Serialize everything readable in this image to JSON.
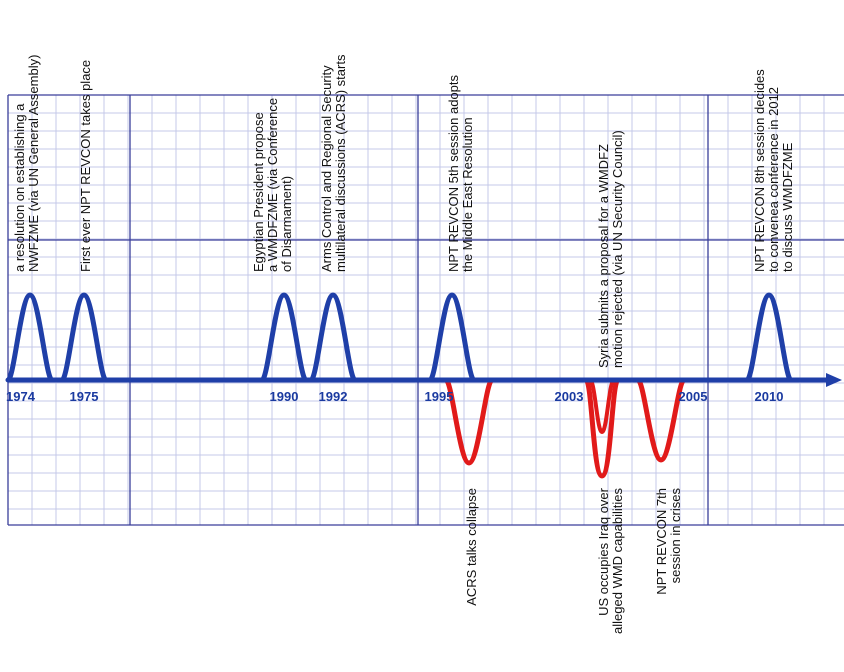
{
  "colors": {
    "grid_fine": "#c4c8e8",
    "grid_major": "#3a3f9a",
    "timeline": "#1f3fa8",
    "positive_event": "#1f3fa8",
    "negative_event": "#e11a1a",
    "text": "#111111",
    "year_text": "#1a3aa0"
  },
  "years": [
    {
      "id": "1974",
      "label": "1974"
    },
    {
      "id": "1975",
      "label": "1975"
    },
    {
      "id": "1990",
      "label": "1990"
    },
    {
      "id": "1992",
      "label": "1992"
    },
    {
      "id": "1995",
      "label": "1995"
    },
    {
      "id": "2003",
      "label": "2003"
    },
    {
      "id": "2005",
      "label": "2005"
    },
    {
      "id": "2010",
      "label": "2010"
    }
  ],
  "events_above": [
    {
      "id": "e1974",
      "year": "1974",
      "lines": [
        "a resolution on establishing a",
        "NWFZME (via UN General Assembly)"
      ]
    },
    {
      "id": "e1975",
      "year": "1975",
      "lines": [
        "First ever NPT REVCON takes place"
      ]
    },
    {
      "id": "e1990",
      "year": "1990",
      "lines": [
        "Egyptian President propose",
        "a WMDFZME (via Conference",
        "of Disarmament)"
      ]
    },
    {
      "id": "e1992",
      "year": "1992",
      "lines": [
        "Arms Control and Regional Security",
        "multilateral discussions (ACRS) starts"
      ]
    },
    {
      "id": "e1995",
      "year": "1995",
      "lines": [
        "NPT REVCON 5th session adopts",
        "the Middle East Resolution"
      ]
    },
    {
      "id": "e2003",
      "year": "2003",
      "lines": [
        "Syria submits a proposal for a WMDFZ",
        "motion rejected (via UN Security Council)"
      ]
    },
    {
      "id": "e2010",
      "year": "2010",
      "lines": [
        "NPT REVCON 8th session decides",
        "to convenea conference in 2012",
        "to discuss WMDFZME"
      ]
    }
  ],
  "events_below": [
    {
      "id": "n1995",
      "year": "1995",
      "lines": [
        "ACRS talks collapse"
      ]
    },
    {
      "id": "n2003",
      "year": "2003",
      "lines": [
        "US occupies Iraq over",
        "alleged WMD capabilities"
      ]
    },
    {
      "id": "n2005",
      "year": "2005",
      "lines": [
        "NPT REVCON 7th",
        "session in crises"
      ]
    }
  ]
}
